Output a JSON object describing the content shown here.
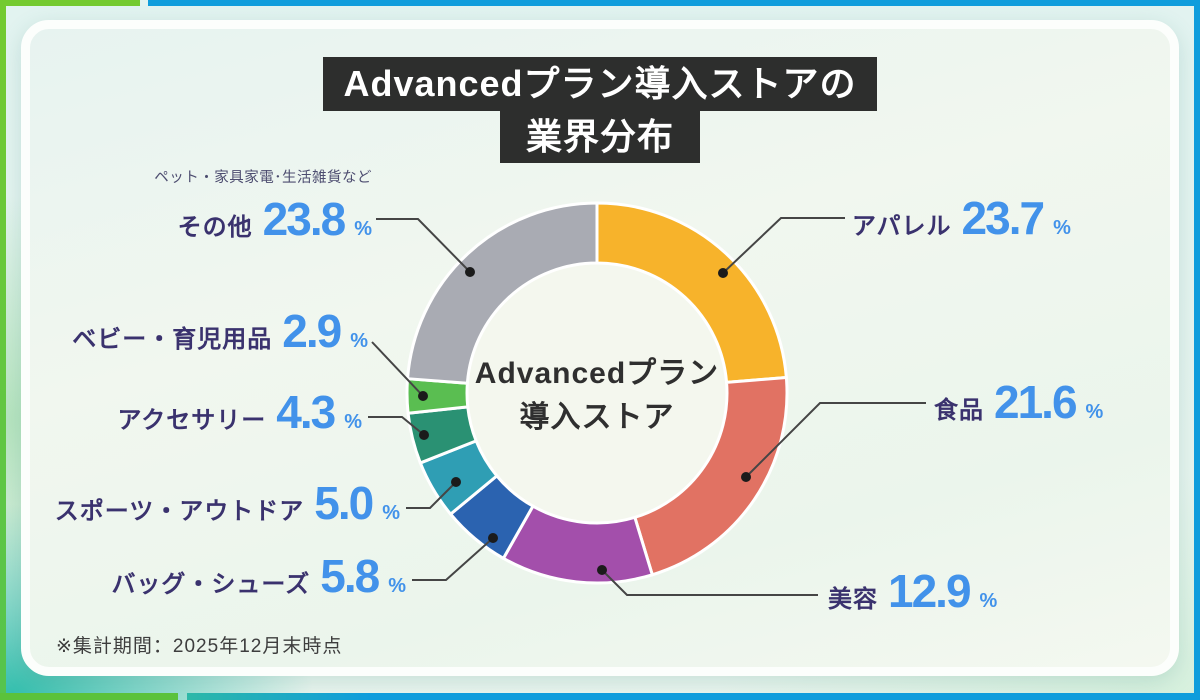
{
  "title": {
    "line1": "Advancedプラン導入ストアの",
    "line2": "業界分布"
  },
  "center_label": {
    "line1": "Advancedプラン",
    "line2": "導入ストア"
  },
  "footnote": "※集計期間：2025年12月末時点",
  "colors": {
    "frame-green": "#74ca30",
    "frame-blue": "#0f9ddc",
    "title-bg": "#2d2e2d",
    "title-text": "#ffffff",
    "label-navy": "#3a326e",
    "value-blue": "#4292ea",
    "note-gray": "#4d4d70",
    "footnote-gray": "#3d3d3d",
    "center-text": "#2f2f2f",
    "leader-line": "#454545",
    "leader-dot": "#1b1b1b",
    "donut-hole": "#f4f7ee"
  },
  "chart_data": {
    "type": "pie",
    "variant": "donut",
    "title": "Advancedプラン導入ストアの業界分布",
    "unit": "%",
    "total": 100.0,
    "start_angle_deg": 0,
    "direction": "clockwise",
    "slices": [
      {
        "id": "apparel",
        "label": "アパレル",
        "value": 23.7,
        "display": "23.7",
        "color": "#f7b32b"
      },
      {
        "id": "food",
        "label": "食品",
        "value": 21.6,
        "display": "21.6",
        "color": "#e17263"
      },
      {
        "id": "beauty",
        "label": "美容",
        "value": 12.9,
        "display": "12.9",
        "color": "#a34fab"
      },
      {
        "id": "bags-shoes",
        "label": "バッグ・シューズ",
        "value": 5.8,
        "display": "5.8",
        "color": "#2b63b0"
      },
      {
        "id": "sports-outdoor",
        "label": "スポーツ・アウトドア",
        "value": 5.0,
        "display": "5.0",
        "color": "#2f9eb4"
      },
      {
        "id": "accessories",
        "label": "アクセサリー",
        "value": 4.3,
        "display": "4.3",
        "color": "#2a9173"
      },
      {
        "id": "baby-childcare",
        "label": "ベビー・育児用品",
        "value": 2.9,
        "display": "2.9",
        "color": "#5abe51"
      },
      {
        "id": "others",
        "label": "その他",
        "value": 23.8,
        "display": "23.8",
        "color": "#a9abb3",
        "note": "ペット・家具家電･生活雑貨など"
      }
    ]
  }
}
